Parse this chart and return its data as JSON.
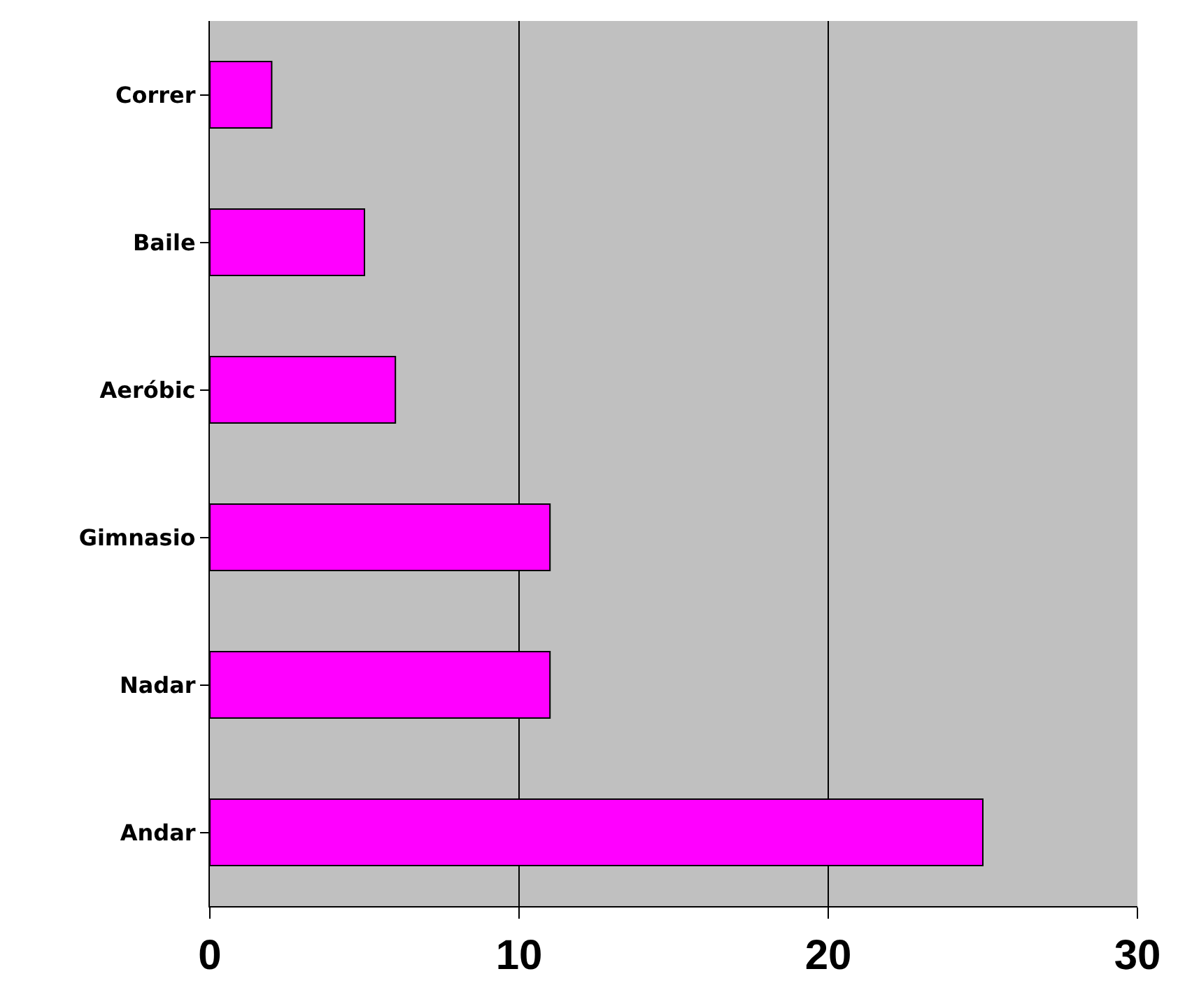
{
  "chart_data": {
    "type": "bar",
    "orientation": "horizontal",
    "categories": [
      "Correr",
      "Baile",
      "Aeróbic",
      "Gimnasio",
      "Nadar",
      "Andar"
    ],
    "values": [
      2,
      5,
      6,
      11,
      11,
      25
    ],
    "color": "#ff00ff",
    "xlim": [
      0,
      30
    ],
    "xticks": [
      0,
      10,
      20,
      30
    ],
    "grid": "x",
    "legend": false
  }
}
